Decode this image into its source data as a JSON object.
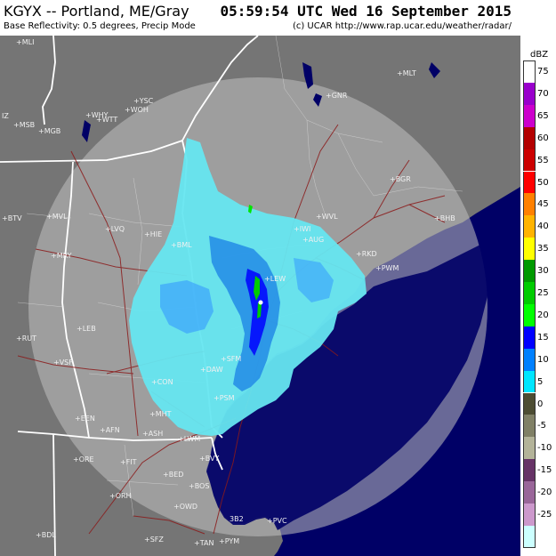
{
  "header": {
    "title": "KGYX -- Portland, ME/Gray",
    "timestamp": "05:59:54 UTC Wed 16 September 2015",
    "subtitle": "Base Reflectivity: 0.5 degrees, Precip Mode",
    "credit": "(c) UCAR   http://www.rap.ucar.edu/weather/radar/"
  },
  "legend": {
    "title": "dBZ",
    "entries": [
      {
        "label": "75",
        "color": "#ffffff"
      },
      {
        "label": "70",
        "color": "#9900cc"
      },
      {
        "label": "65",
        "color": "#cc00cc"
      },
      {
        "label": "60",
        "color": "#b30000"
      },
      {
        "label": "55",
        "color": "#cc0000"
      },
      {
        "label": "50",
        "color": "#ff0000"
      },
      {
        "label": "45",
        "color": "#ff8000"
      },
      {
        "label": "40",
        "color": "#ffb300"
      },
      {
        "label": "35",
        "color": "#ffff00"
      },
      {
        "label": "30",
        "color": "#009900"
      },
      {
        "label": "25",
        "color": "#00cc00"
      },
      {
        "label": "20",
        "color": "#00ff00"
      },
      {
        "label": "15",
        "color": "#0000ff"
      },
      {
        "label": "10",
        "color": "#0080ff"
      },
      {
        "label": "5",
        "color": "#00e6ff"
      },
      {
        "label": "0",
        "color": "#4d4d33"
      },
      {
        "label": "-5",
        "color": "#808066"
      },
      {
        "label": "-10",
        "color": "#b3b399"
      },
      {
        "label": "-15",
        "color": "#663366"
      },
      {
        "label": "-20",
        "color": "#996699"
      },
      {
        "label": "-25",
        "color": "#cc99cc"
      },
      {
        "label": "",
        "color": "#ccffff"
      }
    ]
  },
  "colors": {
    "ocean": "#000066",
    "land": "#7a7a7a",
    "range_ring": "#c8c8c8",
    "state_border": "#ffffff",
    "roads": "#8b2020"
  },
  "stations": [
    {
      "label": "+MLI"
    },
    {
      "label": "+MLT"
    },
    {
      "label": "+YSC"
    },
    {
      "label": "+WHY"
    },
    {
      "label": "+WOH"
    },
    {
      "label": "+WTT"
    },
    {
      "label": "+MGB"
    },
    {
      "label": "IZ"
    },
    {
      "label": "+MSB"
    },
    {
      "label": "+GNR"
    },
    {
      "label": "+BGR"
    },
    {
      "label": "+BTV"
    },
    {
      "label": "+MVL"
    },
    {
      "label": "+LVQ"
    },
    {
      "label": "+HIE"
    },
    {
      "label": "+BML"
    },
    {
      "label": "+WVL"
    },
    {
      "label": "+MRY"
    },
    {
      "label": "+LEB"
    },
    {
      "label": "+RUT"
    },
    {
      "label": "+VSF"
    },
    {
      "label": "+LEW"
    },
    {
      "label": "+PWM"
    },
    {
      "label": "+SFM"
    },
    {
      "label": "+DAW"
    },
    {
      "label": "+CON"
    },
    {
      "label": "+PSM"
    },
    {
      "label": "+EEN"
    },
    {
      "label": "+AFN"
    },
    {
      "label": "+MHT"
    },
    {
      "label": "+ASH"
    },
    {
      "label": "+LWM"
    },
    {
      "label": "+ORE"
    },
    {
      "label": "+FIT"
    },
    {
      "label": "+BVY"
    },
    {
      "label": "+BED"
    },
    {
      "label": "+BOS"
    },
    {
      "label": "+ORH"
    },
    {
      "label": "+OWD"
    },
    {
      "label": "3B2"
    },
    {
      "label": "+PVC"
    },
    {
      "label": "+BDL"
    },
    {
      "label": "+SFZ"
    },
    {
      "label": "+TAN"
    },
    {
      "label": "+PYM"
    },
    {
      "label": "+BHB"
    },
    {
      "label": "+RKD"
    },
    {
      "label": "+IWI"
    },
    {
      "label": "+AUG"
    }
  ]
}
